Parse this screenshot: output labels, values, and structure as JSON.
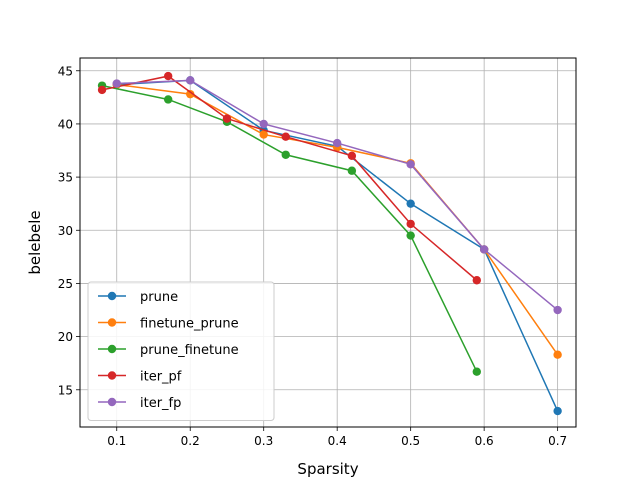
{
  "chart_data": {
    "type": "line",
    "xlabel": "Sparsity",
    "ylabel": "belebele",
    "xlim": [
      0.05,
      0.725
    ],
    "ylim": [
      11.5,
      46.2
    ],
    "xticks": [
      0.1,
      0.2,
      0.3,
      0.4,
      0.5,
      0.6,
      0.7
    ],
    "xtick_labels": [
      "0.1",
      "0.2",
      "0.3",
      "0.4",
      "0.5",
      "0.6",
      "0.7"
    ],
    "yticks": [
      15,
      20,
      25,
      30,
      35,
      40,
      45
    ],
    "ytick_labels": [
      "15",
      "20",
      "25",
      "30",
      "35",
      "40",
      "45"
    ],
    "grid": true,
    "legend_position": "lower-left",
    "series": [
      {
        "name": "prune",
        "color": "#1f77b4",
        "x": [
          0.1,
          0.2,
          0.3,
          0.4,
          0.5,
          0.6,
          0.7
        ],
        "y": [
          43.7,
          44.1,
          39.4,
          37.9,
          32.5,
          28.2,
          13.0
        ]
      },
      {
        "name": "finetune_prune",
        "color": "#ff7f0e",
        "x": [
          0.1,
          0.2,
          0.3,
          0.4,
          0.5,
          0.6,
          0.7
        ],
        "y": [
          43.7,
          42.8,
          39.0,
          37.8,
          36.3,
          28.2,
          18.3
        ]
      },
      {
        "name": "prune_finetune",
        "color": "#2ca02c",
        "x": [
          0.08,
          0.17,
          0.25,
          0.33,
          0.42,
          0.5,
          0.59
        ],
        "y": [
          43.6,
          42.3,
          40.2,
          37.1,
          35.6,
          29.5,
          16.7
        ]
      },
      {
        "name": "iter_pf",
        "color": "#d62728",
        "x": [
          0.08,
          0.17,
          0.25,
          0.33,
          0.42,
          0.5,
          0.59
        ],
        "y": [
          43.2,
          44.5,
          40.5,
          38.8,
          37.0,
          30.6,
          25.3
        ]
      },
      {
        "name": "iter_fp",
        "color": "#9467bd",
        "x": [
          0.1,
          0.2,
          0.3,
          0.4,
          0.5,
          0.6,
          0.7
        ],
        "y": [
          43.8,
          44.1,
          40.0,
          38.2,
          36.2,
          28.2,
          22.5
        ]
      }
    ]
  }
}
